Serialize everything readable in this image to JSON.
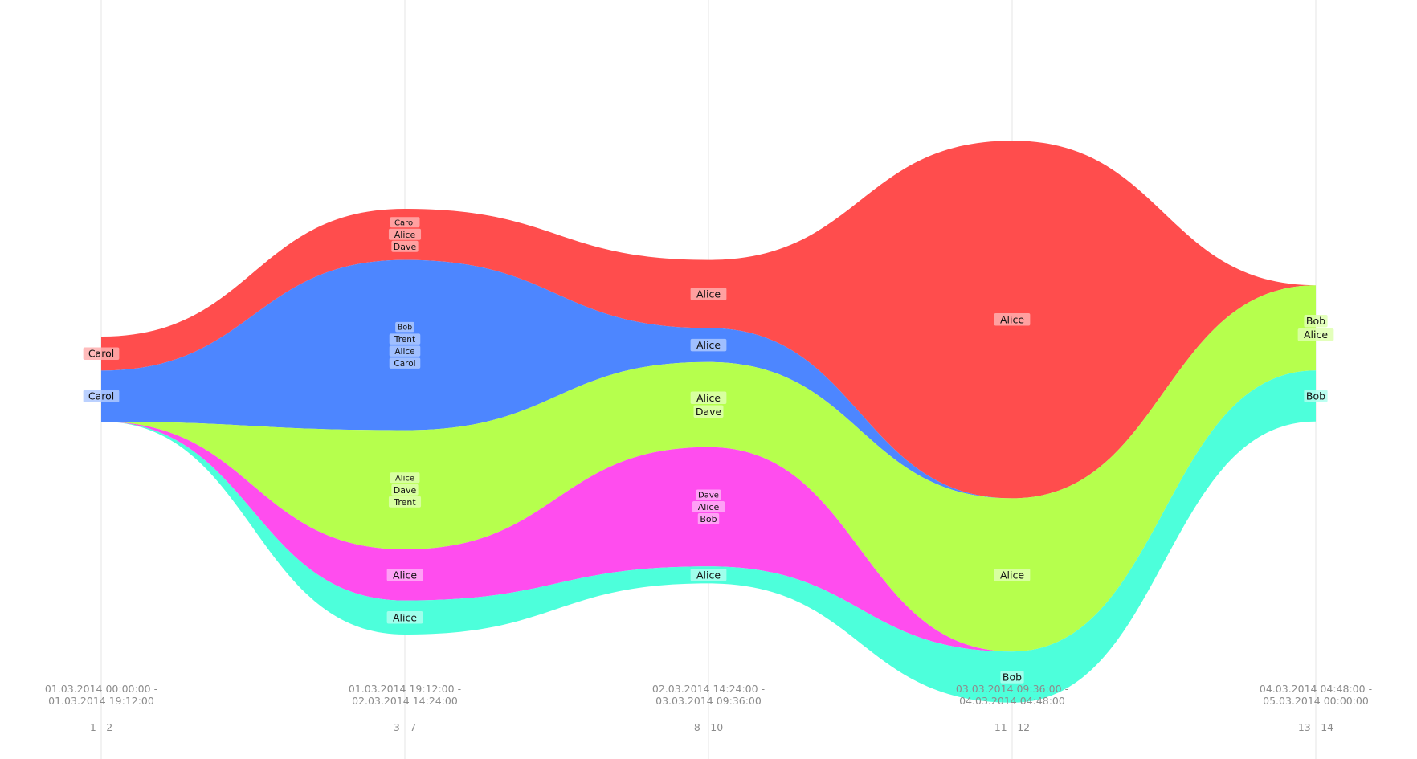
{
  "chart_data": {
    "type": "area",
    "subtype": "streamgraph",
    "columns": [
      {
        "time": "01.03.2014 00:00:00 -",
        "time_end": "01.03.2014 19:12:00",
        "range": "1 - 2"
      },
      {
        "time": "01.03.2014 19:12:00 -",
        "time_end": "02.03.2014 14:24:00",
        "range": "3 - 7"
      },
      {
        "time": "02.03.2014 14:24:00 -",
        "time_end": "03.03.2014 09:36:00",
        "range": "8 - 10"
      },
      {
        "time": "03.03.2014 09:36:00 -",
        "time_end": "04.03.2014 04:48:00",
        "range": "11 - 12"
      },
      {
        "time": "04.03.2014 04:48:00 -",
        "time_end": "05.03.2014 00:00:00",
        "range": "13 - 14"
      }
    ],
    "series": [
      {
        "color": "#ff4d4d",
        "values": [
          2,
          3,
          4,
          21,
          0
        ],
        "labels": [
          [
            "Carol"
          ],
          [
            "Carol",
            "Alice",
            "Dave"
          ],
          [
            "Alice"
          ],
          [
            "Alice"
          ],
          []
        ]
      },
      {
        "color": "#4d86ff",
        "values": [
          3,
          10,
          2,
          0,
          0
        ],
        "labels": [
          [
            "Carol"
          ],
          [
            "Bob",
            "Trent",
            "Alice",
            "Carol"
          ],
          [
            "Alice"
          ],
          [],
          []
        ]
      },
      {
        "color": "#b6ff4d",
        "values": [
          0,
          7,
          5,
          9,
          5
        ],
        "labels": [
          [],
          [
            "Alice",
            "Dave",
            "Trent"
          ],
          [
            "Alice",
            "Dave"
          ],
          [
            "Alice"
          ],
          [
            "Bob",
            "Alice"
          ]
        ]
      },
      {
        "color": "#ff4dee",
        "values": [
          0,
          3,
          7,
          0,
          0
        ],
        "labels": [
          [],
          [
            "Alice"
          ],
          [
            "Dave",
            "Alice",
            "Bob"
          ],
          [],
          []
        ]
      },
      {
        "color": "#4dffdb",
        "values": [
          0,
          2,
          1,
          3,
          3
        ],
        "labels": [
          [],
          [
            "Alice"
          ],
          [
            "Alice"
          ],
          [
            "Bob"
          ],
          [
            "Bob"
          ]
        ]
      }
    ],
    "grid": true,
    "legend": "none"
  }
}
